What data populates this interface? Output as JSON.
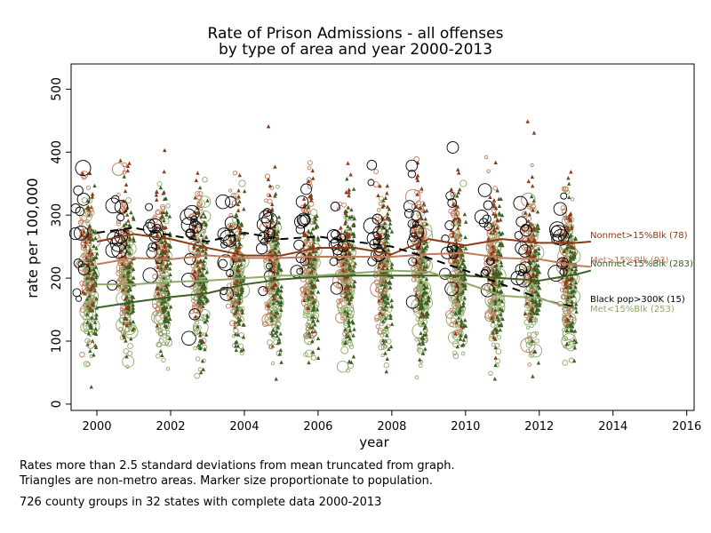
{
  "title": "Rate of  Prison Admissions - all offenses",
  "subtitle": "by type of area and year 2000-2013",
  "notes": [
    "Rates more than 2.5 standard deviations from mean truncated from graph.",
    "Triangles are non-metro areas. Marker size proportionate to  population.",
    "726 county groups in 32 states  with complete data 2000-2013"
  ],
  "colors": {
    "black_pop": "#000000",
    "nonmet_high": "#8c3a16",
    "met_high": "#c07a5c",
    "nonmet_low": "#3d6024",
    "met_low": "#8fa96a"
  },
  "chart_data": {
    "type": "scatter",
    "title": "Rate of  Prison Admissions - all offenses",
    "subtitle": "by type of area and year 2000-2013",
    "xlabel": "year",
    "ylabel": "rate per 100,000",
    "xlim": [
      1999.3,
      2016.2
    ],
    "ylim": [
      -10,
      540
    ],
    "xticks": [
      2000,
      2002,
      2004,
      2006,
      2008,
      2010,
      2012,
      2014,
      2016
    ],
    "yticks": [
      0,
      100,
      200,
      300,
      400,
      500
    ],
    "grid": false,
    "legend": "labels at right end of lines",
    "series": [
      {
        "name": "Nonmet>15%Blk (78)",
        "key": "nonmet_high",
        "style": "solid",
        "x": [
          2000,
          2001,
          2002,
          2003,
          2004,
          2005,
          2006,
          2007,
          2008,
          2009,
          2010,
          2011,
          2012,
          2013,
          2013.4
        ],
        "y": [
          258,
          270,
          262,
          248,
          236,
          236,
          248,
          248,
          238,
          262,
          252,
          262,
          256,
          256,
          258
        ]
      },
      {
        "name": "Met>15%Blk (93)",
        "key": "met_high",
        "style": "solid",
        "x": [
          2000,
          2001,
          2002,
          2003,
          2004,
          2005,
          2006,
          2007,
          2008,
          2009,
          2010,
          2011,
          2012,
          2013,
          2013.4
        ],
        "y": [
          222,
          232,
          230,
          236,
          232,
          232,
          234,
          234,
          234,
          238,
          240,
          232,
          230,
          220,
          218
        ]
      },
      {
        "name": "Nonmet<15%Blk (283)",
        "key": "nonmet_low",
        "style": "solid",
        "x": [
          2000,
          2001,
          2002,
          2003,
          2004,
          2005,
          2006,
          2007,
          2008,
          2009,
          2010,
          2011,
          2012,
          2013,
          2013.4
        ],
        "y": [
          153,
          162,
          170,
          176,
          190,
          198,
          202,
          204,
          204,
          204,
          204,
          200,
          196,
          206,
          212
        ]
      },
      {
        "name": "Black pop>300K (15)",
        "key": "black_pop",
        "style": "dashed",
        "x": [
          2000,
          2001,
          2002,
          2003,
          2004,
          2005,
          2006,
          2007,
          2008,
          2009,
          2010,
          2011,
          2012,
          2012.6,
          2013
        ],
        "y": [
          272,
          280,
          268,
          258,
          272,
          262,
          266,
          258,
          250,
          232,
          212,
          190,
          168,
          158,
          155
        ]
      },
      {
        "name": "Met<15%Blk (253)",
        "key": "met_low",
        "style": "solid",
        "x": [
          2000,
          2001,
          2002,
          2003,
          2004,
          2005,
          2006,
          2007,
          2008,
          2009,
          2010,
          2011,
          2012,
          2013
        ],
        "y": [
          190,
          190,
          194,
          196,
          200,
          204,
          204,
          208,
          212,
          210,
          192,
          172,
          168,
          150
        ]
      }
    ],
    "label_order": [
      "nonmet_high",
      "met_high",
      "nonmet_low",
      "black_pop",
      "met_low"
    ]
  }
}
